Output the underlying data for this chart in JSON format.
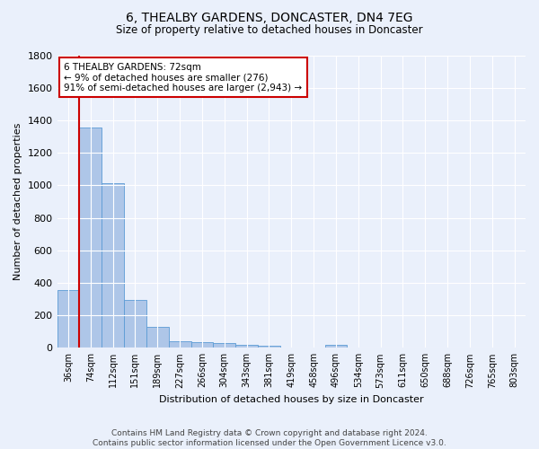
{
  "title": "6, THEALBY GARDENS, DONCASTER, DN4 7EG",
  "subtitle": "Size of property relative to detached houses in Doncaster",
  "xlabel": "Distribution of detached houses by size in Doncaster",
  "ylabel": "Number of detached properties",
  "footer_line1": "Contains HM Land Registry data © Crown copyright and database right 2024.",
  "footer_line2": "Contains public sector information licensed under the Open Government Licence v3.0.",
  "bar_labels": [
    "36sqm",
    "74sqm",
    "112sqm",
    "151sqm",
    "189sqm",
    "227sqm",
    "266sqm",
    "304sqm",
    "343sqm",
    "381sqm",
    "419sqm",
    "458sqm",
    "496sqm",
    "534sqm",
    "573sqm",
    "611sqm",
    "650sqm",
    "688sqm",
    "726sqm",
    "765sqm",
    "803sqm"
  ],
  "bar_values": [
    355,
    1355,
    1010,
    295,
    130,
    40,
    35,
    30,
    20,
    15,
    0,
    0,
    20,
    0,
    0,
    0,
    0,
    0,
    0,
    0,
    0
  ],
  "bar_color": "#aec6e8",
  "bar_edge_color": "#5b9bd5",
  "bg_color": "#eaf0fb",
  "grid_color": "#ffffff",
  "vline_x": 0.5,
  "vline_color": "#cc0000",
  "annotation_text": "6 THEALBY GARDENS: 72sqm\n← 9% of detached houses are smaller (276)\n91% of semi-detached houses are larger (2,943) →",
  "annotation_box_color": "#ffffff",
  "annotation_border_color": "#cc0000",
  "ylim": [
    0,
    1800
  ],
  "yticks": [
    0,
    200,
    400,
    600,
    800,
    1000,
    1200,
    1400,
    1600,
    1800
  ]
}
